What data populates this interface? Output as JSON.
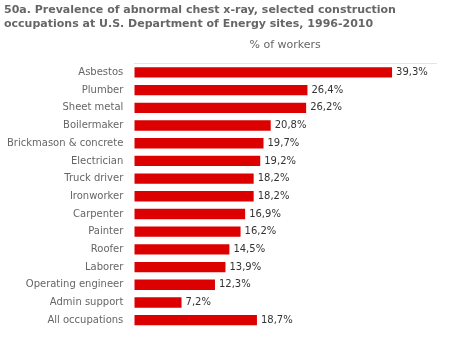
{
  "chart_data": {
    "type": "bar",
    "title": "50a. Prevalence of abnormal chest x-ray, selected construction\noccupations at U.S. Department of Energy sites, 1996-2010",
    "xlabel": "% of workers",
    "orientation": "horizontal",
    "categories": [
      "All occupations",
      "Admin support",
      "Operating engineer",
      "Laborer",
      "Roofer",
      "Painter",
      "Carpenter",
      "Ironworker",
      "Truck driver",
      "Electrician",
      "Brickmason & concrete",
      "Boilermaker",
      "Sheet metal",
      "Plumber",
      "Asbestos"
    ],
    "values": [
      18.7,
      7.2,
      12.3,
      13.9,
      14.5,
      16.2,
      16.9,
      18.2,
      18.2,
      19.2,
      19.7,
      20.8,
      26.2,
      26.4,
      39.3
    ],
    "value_labels": [
      "18,7%",
      "7,2%",
      "12,3%",
      "13,9%",
      "14,5%",
      "16,2%",
      "16,9%",
      "18,2%",
      "18,2%",
      "19,2%",
      "19,7%",
      "20,8%",
      "26,2%",
      "26,4%",
      "39,3%"
    ],
    "data_labels": true,
    "color": "#dd0000",
    "xlim": [
      0,
      46
    ],
    "tick_labels": "y",
    "grid": false
  }
}
